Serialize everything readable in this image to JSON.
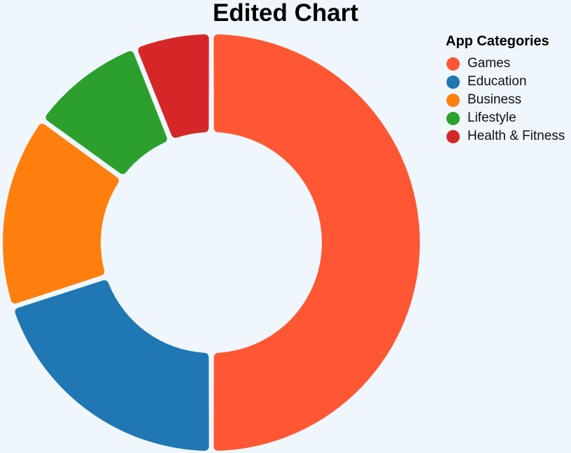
{
  "chart_data": {
    "type": "pie",
    "variant": "donut",
    "title": "Edited Chart",
    "legend_title": "App Categories",
    "legend_position": "top-right",
    "categories": [
      "Games",
      "Education",
      "Business",
      "Lifestyle",
      "Health & Fitness"
    ],
    "values": [
      50,
      20,
      15,
      9,
      6
    ],
    "colors": [
      "#ff5733",
      "#1f77b4",
      "#ff7f0e",
      "#2ca02c",
      "#d62728"
    ],
    "show_values": false
  }
}
